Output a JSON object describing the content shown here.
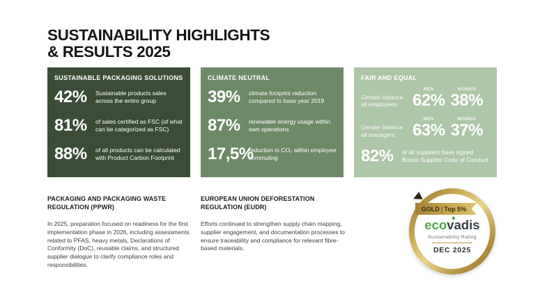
{
  "title": {
    "line1": "SUSTAINABILITY HIGHLIGHTS",
    "line2": "& RESULTS 2025"
  },
  "cards": [
    {
      "header": "SUSTAINABLE PACKAGING SOLUTIONS",
      "stats": [
        {
          "value": "42%",
          "desc": "Sustainable products sales across the entire group"
        },
        {
          "value": "81%",
          "desc": "of sales certified as FSC (of what can be categorized as FSC)"
        },
        {
          "value": "88%",
          "desc": "of all products can be calculated with Product Carbon Footprint"
        }
      ]
    },
    {
      "header": "CLIMATE NEUTRAL",
      "stats": [
        {
          "value": "39%",
          "desc": "climate footprint reduction compared to base year 2019"
        },
        {
          "value": "87%",
          "desc": "renewable energy usage within own operations"
        },
        {
          "value": "17,5%",
          "desc": "reduction in CO₂ within employee commuting"
        }
      ]
    },
    {
      "header": "FAIR AND EQUAL",
      "gender_rows": [
        {
          "label": "Gender balance all employees",
          "men_label": "MEN",
          "men_value": "62%",
          "women_label": "WOMEN",
          "women_value": "38%"
        },
        {
          "label": "Gender balance all managers",
          "men_label": "MEN",
          "men_value": "63%",
          "women_label": "WOMEN",
          "women_value": "37%"
        }
      ],
      "stat": {
        "value": "82%",
        "desc": "of all suppliers have signed Boxon Supplier Code of Conduct"
      }
    }
  ],
  "sections": [
    {
      "header": "PACKAGING AND PACKAGING WASTE REGULATION (PPWR)",
      "body": "In 2025, preparation focused on readiness for the first implementation phase in 2026, including assessments related to PFAS, heavy metals, Declarations of Conformity (DoC), reusable claims, and structured supplier dialogue to clarify compliance roles and responsibilities."
    },
    {
      "header": "EUROPEAN UNION DEFORESTATION REGULATION (EUDR)",
      "body": "Efforts continued to strengthen supply chain mapping, supplier engagement, and documentation processes to ensure traceability and compliance for relevant fibre-based materials."
    }
  ],
  "badge": {
    "ribbon_award": "GOLD",
    "ribbon_separator": "|",
    "ribbon_rank": "Top 5%",
    "logo_eco": "eco",
    "logo_vadis": "vadis",
    "subtitle": "Sustainability Rating",
    "date": "DEC 2025"
  },
  "colors": {
    "card_dark_green": "#3b4d36",
    "card_medium_green": "#6c8a66",
    "card_light_green": "#aec6a8",
    "badge_gold": "#b9963f",
    "ribbon_gold": "#c9a74f",
    "logo_green": "#4ca647",
    "logo_dark": "#3a4049",
    "text_dark": "#141414"
  }
}
